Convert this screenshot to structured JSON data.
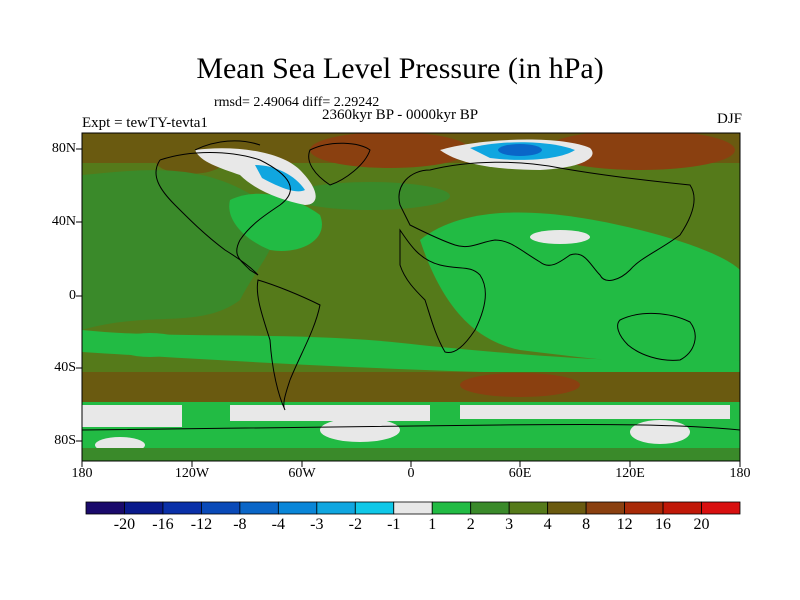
{
  "title": "Mean Sea Level Pressure (in hPa)",
  "stats": "rmsd= 2.49064 diff= 2.29242",
  "period": "2360kyr BP - 0000kyr BP",
  "experiment": "Expt = tewTY-tevta1",
  "season": "DJF",
  "map": {
    "lat_labels": [
      "80N",
      "40N",
      "0",
      "40S",
      "80S"
    ],
    "lon_labels": [
      "180",
      "120W",
      "60W",
      "0",
      "60E",
      "120E",
      "180"
    ]
  },
  "colorbar": {
    "labels": [
      "-20",
      "-16",
      "-12",
      "-8",
      "-4",
      "-3",
      "-2",
      "-1",
      "1",
      "2",
      "3",
      "4",
      "8",
      "12",
      "16",
      "20"
    ],
    "colors": [
      "#1a0a6b",
      "#0a1a8c",
      "#0a30a8",
      "#0a4ab8",
      "#0a66c8",
      "#0a86d8",
      "#10a6e0",
      "#10c8e8",
      "#e8e8e8",
      "#22bb44",
      "#3a8a2a",
      "#557a1a",
      "#6a5a10",
      "#8a4010",
      "#a82a08",
      "#c01808",
      "#d81010"
    ]
  },
  "colors": {
    "land_outline": "#000000",
    "background_level": "#557a1a"
  }
}
